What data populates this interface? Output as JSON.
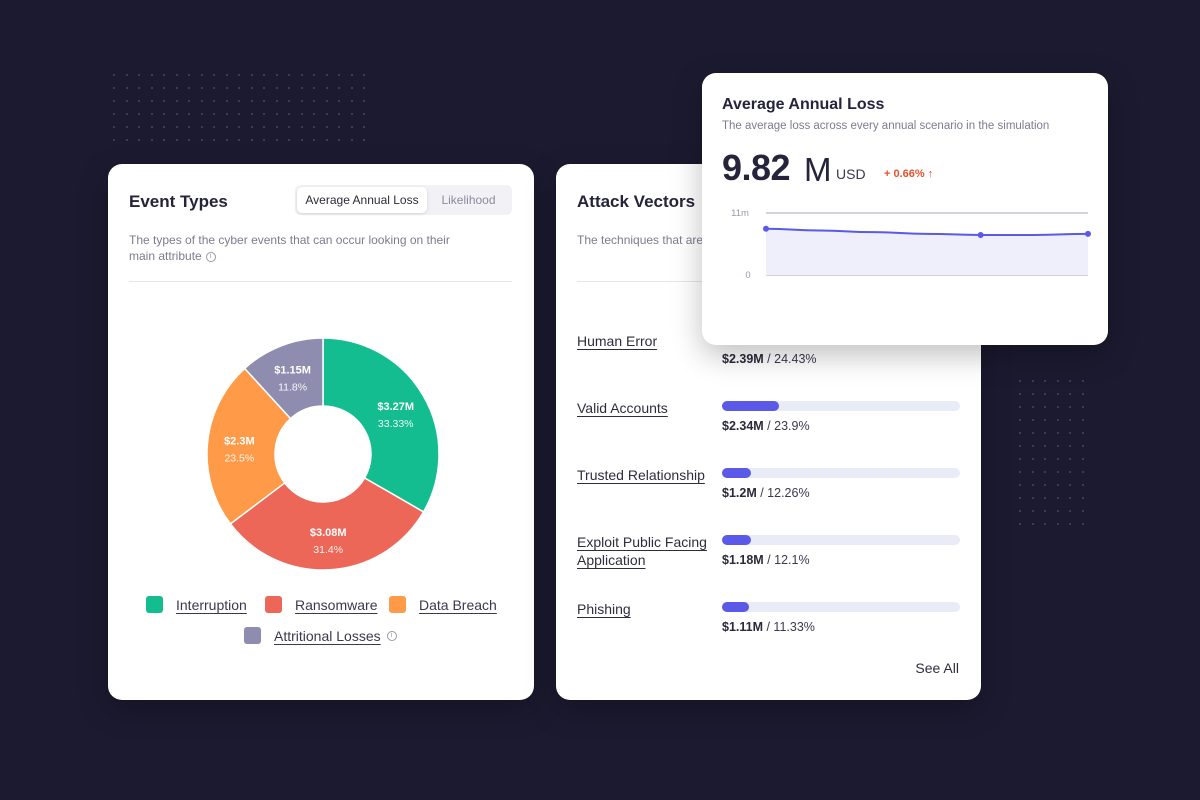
{
  "event_types": {
    "title": "Event Types",
    "toggle": [
      "Average Annual Loss",
      "Likelihood"
    ],
    "description": "The types of the cyber events that can occur looking on  their main attribute",
    "info_icon": "info-icon",
    "legend": [
      {
        "label": "Interruption",
        "color": "#14bd8f"
      },
      {
        "label": "Ransomware",
        "color": "#ec6757"
      },
      {
        "label": "Data Breach",
        "color": "#ff9b48"
      },
      {
        "label": "Attritional Losses",
        "color": "#8f8daf"
      }
    ]
  },
  "attack_vectors": {
    "title": "Attack Vectors",
    "description": "The techniques that are",
    "see_all": "See All",
    "items": [
      {
        "name": "Human Error",
        "amount": "$2.39M",
        "percent": "24.43%",
        "fill_fraction": 0.2443
      },
      {
        "name": "Valid Accounts",
        "amount": "$2.34M",
        "percent": "23.9%",
        "fill_fraction": 0.239
      },
      {
        "name": "Trusted Relationship",
        "amount": "$1.2M",
        "percent": "12.26%",
        "fill_fraction": 0.1226
      },
      {
        "name": "Exploit Public Facing Application",
        "amount": "$1.18M",
        "percent": "12.1%",
        "fill_fraction": 0.121
      },
      {
        "name": "Phishing",
        "amount": "$1.11M",
        "percent": "11.33%",
        "fill_fraction": 0.1133
      }
    ]
  },
  "average_annual_loss": {
    "title": "Average Annual Loss",
    "description": "The average loss across every annual scenario in the simulation",
    "value": "9.82",
    "unit": "M",
    "currency": "USD",
    "change": "+ 0.66% ↑",
    "change_color": "#e8502a"
  },
  "chart_data": [
    {
      "type": "pie",
      "categories": [
        "Interruption",
        "Ransomware",
        "Data Breach",
        "Attritional Losses"
      ],
      "values": [
        33.33,
        31.4,
        23.5,
        11.8
      ],
      "value_labels": [
        "$3.27M",
        "$3.08M",
        "$2.3M",
        "$1.15M"
      ],
      "percent_labels": [
        "33.33%",
        "31.4%",
        "23.5%",
        "11.8%"
      ],
      "colors": [
        "#14bd8f",
        "#ec6757",
        "#ff9b48",
        "#8f8daf"
      ],
      "donut": true
    },
    {
      "type": "line",
      "x": [
        0,
        1,
        2,
        3,
        4,
        5,
        6
      ],
      "values": [
        8.2,
        7.9,
        7.6,
        7.3,
        7.1,
        7.1,
        7.3
      ],
      "marker_indices": [
        0,
        4,
        6
      ],
      "ytick_labels": [
        "11m",
        "0"
      ],
      "ylim": [
        0,
        11
      ],
      "color": "#5a59e8"
    }
  ]
}
